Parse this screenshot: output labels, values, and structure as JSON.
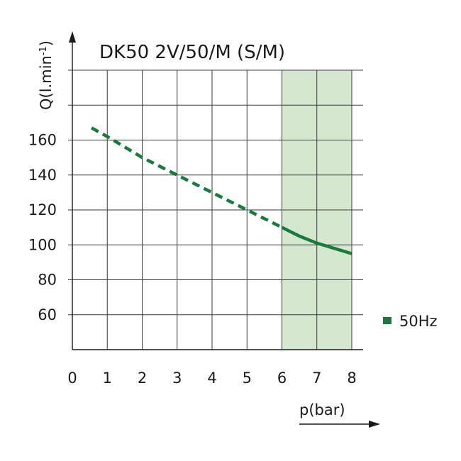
{
  "chart_data": {
    "type": "line",
    "title": "DK50 2V/50/M (S/M)",
    "xlabel": "p(bar)",
    "ylabel": "Q(l.min",
    "ylabel_sup": "-1",
    "ylabel_close": ")",
    "xlim": [
      0,
      8
    ],
    "ylim": [
      40,
      200
    ],
    "x_ticks": [
      0,
      1,
      2,
      3,
      4,
      5,
      6,
      7,
      8
    ],
    "y_ticks": [
      60,
      80,
      100,
      120,
      140,
      160
    ],
    "grid": true,
    "shaded_x_range": [
      6,
      8
    ],
    "shade_color": "#d5e8cf",
    "legend_position": "right",
    "series": [
      {
        "name": "50Hz",
        "color": "#1a7a3e",
        "dashed_segment": {
          "x": [
            0.55,
            1.0,
            2.0,
            3.0,
            4.0,
            5.0,
            6.0
          ],
          "y": [
            167,
            162,
            150,
            140,
            130,
            120,
            110
          ]
        },
        "solid_segment": {
          "x": [
            6.0,
            6.5,
            7.0,
            7.5,
            8.0
          ],
          "y": [
            110,
            105,
            101,
            98,
            95
          ]
        }
      }
    ]
  }
}
